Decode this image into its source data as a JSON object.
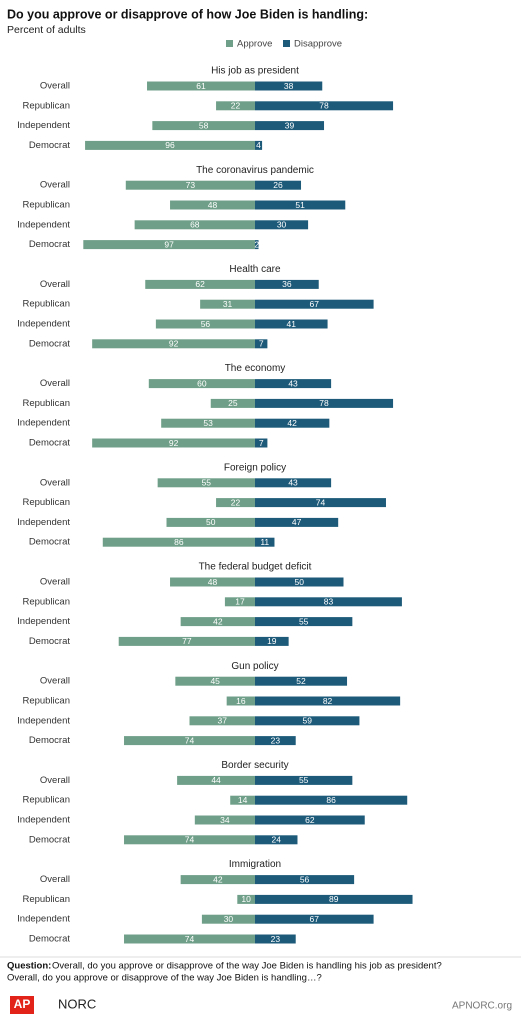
{
  "header": {
    "title": "Do you approve or disapprove of how Joe Biden is handling:",
    "subtitle": "Percent of adults"
  },
  "chart_data": [
    {
      "type": "bar",
      "title": "His job as president",
      "categories": [
        "Overall",
        "Republican",
        "Independent",
        "Democrat"
      ],
      "series": [
        {
          "name": "Approve",
          "color": "#6f9f88",
          "values": [
            61,
            22,
            58,
            96
          ]
        },
        {
          "name": "Disapprove",
          "color": "#1d5a79",
          "values": [
            38,
            78,
            39,
            4
          ]
        }
      ]
    },
    {
      "type": "bar",
      "title": "The coronavirus pandemic",
      "categories": [
        "Overall",
        "Republican",
        "Independent",
        "Democrat"
      ],
      "series": [
        {
          "name": "Approve",
          "color": "#6f9f88",
          "values": [
            73,
            48,
            68,
            97
          ]
        },
        {
          "name": "Disapprove",
          "color": "#1d5a79",
          "values": [
            26,
            51,
            30,
            2
          ]
        }
      ]
    },
    {
      "type": "bar",
      "title": "Health care",
      "categories": [
        "Overall",
        "Republican",
        "Independent",
        "Democrat"
      ],
      "series": [
        {
          "name": "Approve",
          "color": "#6f9f88",
          "values": [
            62,
            31,
            56,
            92
          ]
        },
        {
          "name": "Disapprove",
          "color": "#1d5a79",
          "values": [
            36,
            67,
            41,
            7
          ]
        }
      ]
    },
    {
      "type": "bar",
      "title": "The economy",
      "categories": [
        "Overall",
        "Republican",
        "Independent",
        "Democrat"
      ],
      "series": [
        {
          "name": "Approve",
          "color": "#6f9f88",
          "values": [
            60,
            25,
            53,
            92
          ]
        },
        {
          "name": "Disapprove",
          "color": "#1d5a79",
          "values": [
            43,
            78,
            42,
            7
          ]
        }
      ]
    },
    {
      "type": "bar",
      "title": "Foreign policy",
      "categories": [
        "Overall",
        "Republican",
        "Independent",
        "Democrat"
      ],
      "series": [
        {
          "name": "Approve",
          "color": "#6f9f88",
          "values": [
            55,
            22,
            50,
            86
          ]
        },
        {
          "name": "Disapprove",
          "color": "#1d5a79",
          "values": [
            43,
            74,
            47,
            11
          ]
        }
      ]
    },
    {
      "type": "bar",
      "title": "The federal budget deficit",
      "categories": [
        "Overall",
        "Republican",
        "Independent",
        "Democrat"
      ],
      "series": [
        {
          "name": "Approve",
          "color": "#6f9f88",
          "values": [
            48,
            17,
            42,
            77
          ]
        },
        {
          "name": "Disapprove",
          "color": "#1d5a79",
          "values": [
            50,
            83,
            55,
            19
          ]
        }
      ]
    },
    {
      "type": "bar",
      "title": "Gun policy",
      "categories": [
        "Overall",
        "Republican",
        "Independent",
        "Democrat"
      ],
      "series": [
        {
          "name": "Approve",
          "color": "#6f9f88",
          "values": [
            45,
            16,
            37,
            74
          ]
        },
        {
          "name": "Disapprove",
          "color": "#1d5a79",
          "values": [
            52,
            82,
            59,
            23
          ]
        }
      ]
    },
    {
      "type": "bar",
      "title": "Border security",
      "categories": [
        "Overall",
        "Republican",
        "Independent",
        "Democrat"
      ],
      "series": [
        {
          "name": "Approve",
          "color": "#6f9f88",
          "values": [
            44,
            14,
            34,
            74
          ]
        },
        {
          "name": "Disapprove",
          "color": "#1d5a79",
          "values": [
            55,
            86,
            62,
            24
          ]
        }
      ]
    },
    {
      "type": "bar",
      "title": "Immigration",
      "categories": [
        "Overall",
        "Republican",
        "Independent",
        "Democrat"
      ],
      "series": [
        {
          "name": "Approve",
          "color": "#6f9f88",
          "values": [
            42,
            10,
            30,
            74
          ]
        },
        {
          "name": "Disapprove",
          "color": "#1d5a79",
          "values": [
            56,
            89,
            67,
            23
          ]
        }
      ]
    }
  ],
  "footer": {
    "question_label": "Question:",
    "question": "Overall, do you approve or disapprove of the way Joe Biden is handling his job as president?",
    "question2": "Overall, do you approve or disapprove of the way Joe Biden is handling…?",
    "logo_ap": "AP",
    "logo_norc": "NORC",
    "site": "APNORC.org"
  }
}
